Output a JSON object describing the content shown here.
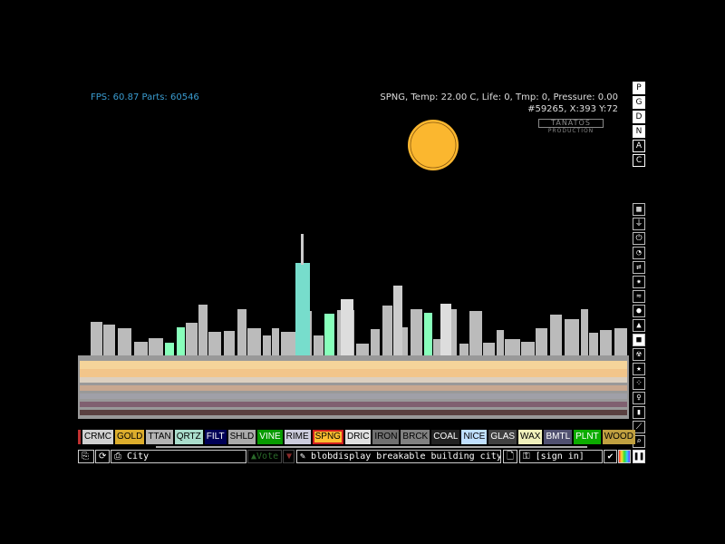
{
  "hud": {
    "fps": "FPS: 60.87 Parts: 60546",
    "info_line1": "SPNG, Temp: 22.00 C, Life: 0, Tmp: 0, Pressure: 0.00",
    "info_line2": "#59265, X:393 Y:72",
    "logo_title": "TANATOS",
    "logo_sub": "PRODUCTION"
  },
  "render_buttons": [
    "P",
    "G",
    "D",
    "N",
    "A",
    "C"
  ],
  "menu_icons": [
    "wall-icon",
    "electronics-icon",
    "powered-icon",
    "sensor-icon",
    "force-icon",
    "explosive-icon",
    "gas-icon",
    "liquid-icon",
    "powder-icon",
    "solid-icon",
    "radioactive-icon",
    "special-icon",
    "life-icon",
    "tools-icon",
    "favorites-icon",
    "decoration-icon",
    "search-icon"
  ],
  "elements": [
    {
      "label": "CRMC",
      "bg": "#d0d0d0",
      "fg": "#000"
    },
    {
      "label": "GOLD",
      "bg": "#dcad2c",
      "fg": "#000"
    },
    {
      "label": "TTAN",
      "bg": "#b3b3b3",
      "fg": "#000"
    },
    {
      "label": "QRTZ",
      "bg": "#aaddcc",
      "fg": "#000"
    },
    {
      "label": "FILT",
      "bg": "#000056",
      "fg": "#fff"
    },
    {
      "label": "SHLD",
      "bg": "#aaaaaa",
      "fg": "#000"
    },
    {
      "label": "VINE",
      "bg": "#079a00",
      "fg": "#fff"
    },
    {
      "label": "RIME",
      "bg": "#ccccdd",
      "fg": "#000"
    },
    {
      "label": "SPNG",
      "bg": "#ffbe30",
      "fg": "#000",
      "selected": true
    },
    {
      "label": "DRIC",
      "bg": "#e0e0e0",
      "fg": "#000"
    },
    {
      "label": "IRON",
      "bg": "#707070",
      "fg": "#000"
    },
    {
      "label": "BRCK",
      "bg": "#808080",
      "fg": "#000"
    },
    {
      "label": "COAL",
      "bg": "#222222",
      "fg": "#fff"
    },
    {
      "label": "NICE",
      "bg": "#c0e0ff",
      "fg": "#000"
    },
    {
      "label": "GLAS",
      "bg": "#404040",
      "fg": "#fff"
    },
    {
      "label": "WAX",
      "bg": "#f0f0bb",
      "fg": "#000"
    },
    {
      "label": "BMTL",
      "bg": "#505070",
      "fg": "#fff"
    },
    {
      "label": "PLNT",
      "bg": "#0cac00",
      "fg": "#fff"
    },
    {
      "label": "WOOD",
      "bg": "#c0a040",
      "fg": "#000"
    }
  ],
  "bottom": {
    "save_name": "City",
    "vote": "Vote",
    "tags": "blobdisplay breakable building city dest...",
    "signin": "[sign in]"
  },
  "sun_color": "#fbb72f"
}
